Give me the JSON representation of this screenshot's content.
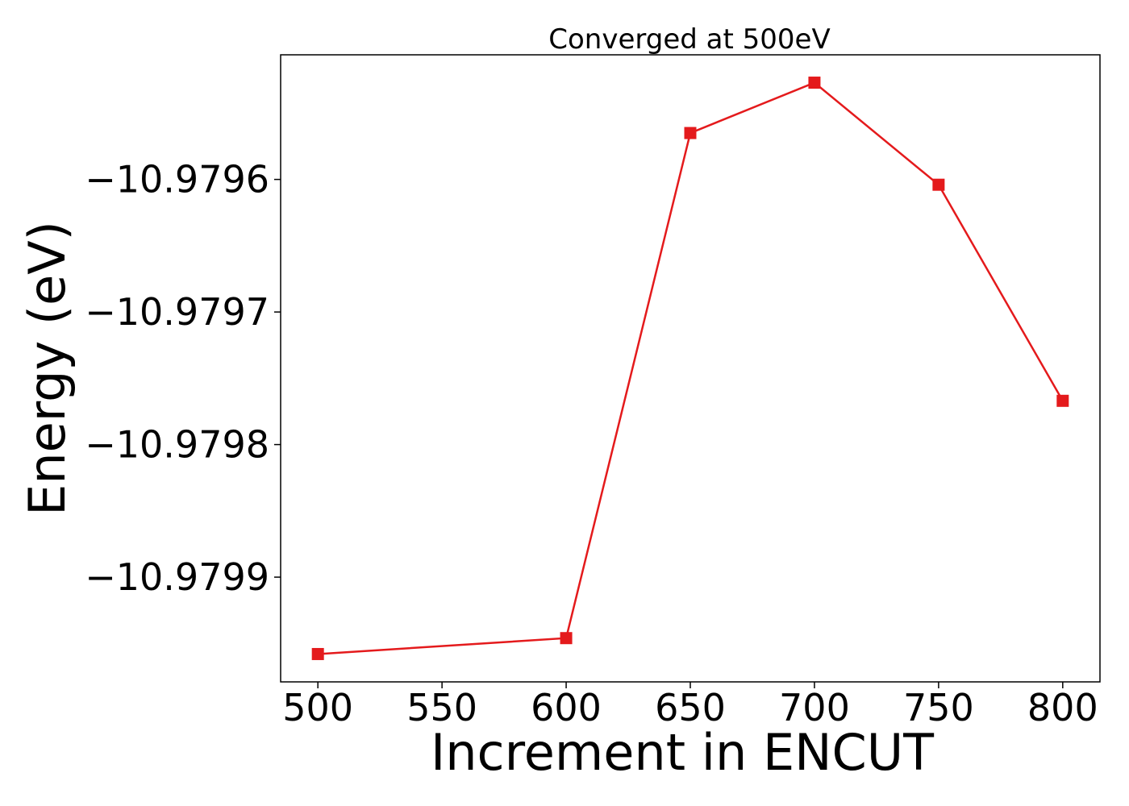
{
  "chart_data": {
    "type": "line",
    "title": "Converged at 500eV",
    "xlabel": "Increment in ENCUT",
    "ylabel": "Energy (eV)",
    "x": [
      500,
      600,
      650,
      700,
      750,
      800
    ],
    "series": [
      {
        "values": [
          -10.979958,
          -10.979946,
          -10.979565,
          -10.979527,
          -10.979604,
          -10.979767
        ],
        "color": "#e41a1c",
        "marker": "square"
      }
    ],
    "xticks": [
      500,
      550,
      600,
      650,
      700,
      750,
      800
    ],
    "xtick_labels": [
      "500",
      "550",
      "600",
      "650",
      "700",
      "750",
      "800"
    ],
    "yticks": [
      -10.9799,
      -10.9798,
      -10.9797,
      -10.9796
    ],
    "ytick_labels": [
      "−10.9799",
      "−10.9798",
      "−10.9797",
      "−10.9796"
    ],
    "xlim": [
      485,
      815
    ],
    "ylim": [
      -10.979979,
      -10.979506
    ],
    "grid": false,
    "legend": "none"
  }
}
